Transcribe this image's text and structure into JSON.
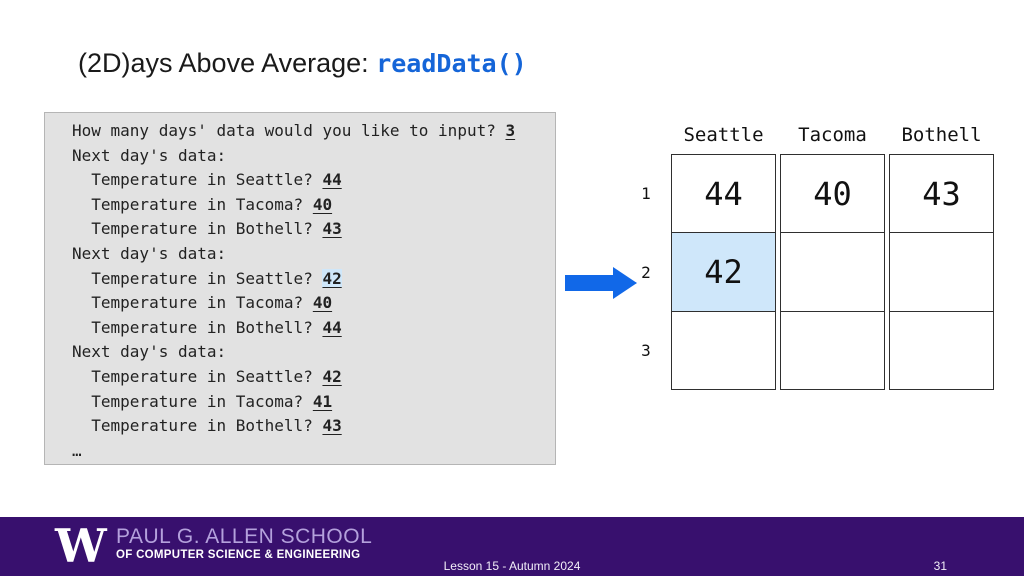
{
  "title": {
    "prefix": "(2D)ays Above Average: ",
    "code": "readData()"
  },
  "console": {
    "lines": [
      {
        "prompt": "How many days' data would you like to input? ",
        "input": "3"
      },
      {
        "prompt": "Next day's data:",
        "input": null
      },
      {
        "prompt": "  Temperature in Seattle? ",
        "input": "44"
      },
      {
        "prompt": "  Temperature in Tacoma? ",
        "input": "40"
      },
      {
        "prompt": "  Temperature in Bothell? ",
        "input": "43"
      },
      {
        "prompt": "Next day's data:",
        "input": null
      },
      {
        "prompt": "  Temperature in Seattle? ",
        "input": "42",
        "highlight": true
      },
      {
        "prompt": "  Temperature in Tacoma? ",
        "input": "40"
      },
      {
        "prompt": "  Temperature in Bothell? ",
        "input": "44"
      },
      {
        "prompt": "Next day's data:",
        "input": null
      },
      {
        "prompt": "  Temperature in Seattle? ",
        "input": "42"
      },
      {
        "prompt": "  Temperature in Tacoma? ",
        "input": "41"
      },
      {
        "prompt": "  Temperature in Bothell? ",
        "input": "43"
      },
      {
        "prompt": "…",
        "input": null
      }
    ]
  },
  "table": {
    "columns": [
      "Seattle",
      "Tacoma",
      "Bothell"
    ],
    "row_labels": [
      "1",
      "2",
      "3"
    ],
    "rows": [
      [
        "44",
        "40",
        "43"
      ],
      [
        "42",
        "",
        ""
      ],
      [
        "",
        "",
        ""
      ]
    ],
    "highlight_cell": {
      "row": 1,
      "col": 0
    }
  },
  "footer": {
    "logo_letter": "W",
    "school_line1": "PAUL G. ALLEN SCHOOL",
    "school_line2": "OF COMPUTER SCIENCE & ENGINEERING",
    "center_text": "Lesson 15 - Autumn 2024",
    "page_number": "31"
  },
  "colors": {
    "title_code_blue": "#1565d8",
    "arrow_blue": "#1168e8",
    "cell_highlight_blue": "#cfe7fa",
    "footer_purple": "#38106e",
    "school_lavender": "#b4a1dc"
  }
}
